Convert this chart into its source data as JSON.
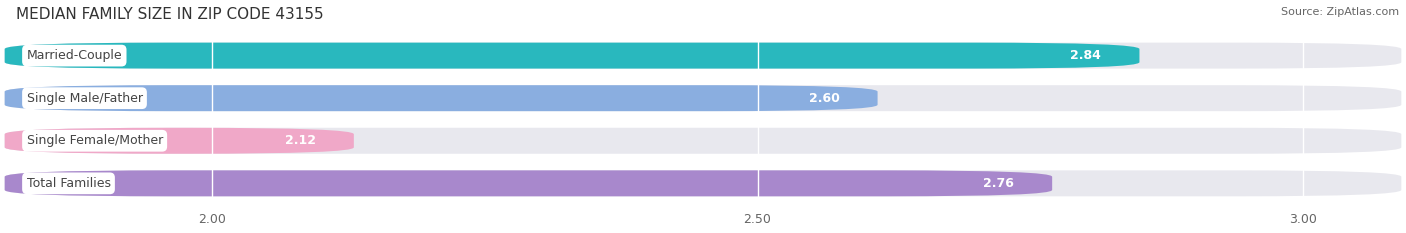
{
  "title": "MEDIAN FAMILY SIZE IN ZIP CODE 43155",
  "source": "Source: ZipAtlas.com",
  "categories": [
    "Married-Couple",
    "Single Male/Father",
    "Single Female/Mother",
    "Total Families"
  ],
  "values": [
    2.84,
    2.6,
    2.12,
    2.76
  ],
  "bar_colors": [
    "#29b8be",
    "#8aaee0",
    "#f0a8c8",
    "#a888cc"
  ],
  "xlim_min": 1.82,
  "xlim_max": 3.08,
  "xticks": [
    2.0,
    2.5,
    3.0
  ],
  "xtick_labels": [
    "2.00",
    "2.50",
    "3.00"
  ],
  "background_color": "#ffffff",
  "bar_bg_color": "#e8e8ee",
  "title_fontsize": 11,
  "source_fontsize": 8,
  "tick_fontsize": 9,
  "label_fontsize": 9,
  "value_fontsize": 9
}
